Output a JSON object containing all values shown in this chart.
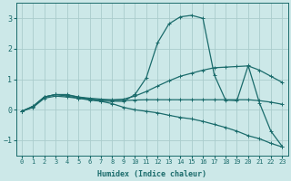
{
  "xlabel": "Humidex (Indice chaleur)",
  "ylabel": "",
  "bg_color": "#cce8e8",
  "grid_color": "#aacccc",
  "line_color": "#1a6b6b",
  "xlim": [
    -0.5,
    23.5
  ],
  "ylim": [
    -1.5,
    3.5
  ],
  "yticks": [
    -1,
    0,
    1,
    2,
    3
  ],
  "xticks": [
    0,
    1,
    2,
    3,
    4,
    5,
    6,
    7,
    8,
    9,
    10,
    11,
    12,
    13,
    14,
    15,
    16,
    17,
    18,
    19,
    20,
    21,
    22,
    23
  ],
  "series": [
    {
      "x": [
        0,
        1,
        2,
        3,
        4,
        5,
        6,
        7,
        8,
        9,
        10,
        11,
        12,
        13,
        14,
        15,
        16,
        17,
        18,
        19,
        20,
        21,
        22,
        23
      ],
      "y": [
        -0.05,
        0.12,
        0.42,
        0.5,
        0.45,
        0.38,
        0.32,
        0.28,
        0.28,
        0.28,
        0.5,
        1.05,
        2.2,
        2.82,
        3.05,
        3.1,
        3.0,
        1.15,
        0.32,
        0.3,
        1.45,
        0.22,
        -0.7,
        -1.2
      ]
    },
    {
      "x": [
        0,
        1,
        2,
        3,
        4,
        5,
        6,
        7,
        8,
        9,
        10,
        11,
        12,
        13,
        14,
        15,
        16,
        17,
        18,
        19,
        20,
        21,
        22,
        23
      ],
      "y": [
        -0.05,
        0.08,
        0.38,
        0.45,
        0.42,
        0.38,
        0.35,
        0.32,
        0.33,
        0.35,
        0.45,
        0.6,
        0.78,
        0.95,
        1.1,
        1.2,
        1.3,
        1.38,
        1.4,
        1.42,
        1.44,
        1.3,
        1.1,
        0.9
      ]
    },
    {
      "x": [
        0,
        1,
        2,
        3,
        4,
        5,
        6,
        7,
        8,
        9,
        10,
        11,
        12,
        13,
        14,
        15,
        16,
        17,
        18,
        19,
        20,
        21,
        22,
        23
      ],
      "y": [
        -0.05,
        0.1,
        0.42,
        0.5,
        0.48,
        0.42,
        0.38,
        0.35,
        0.32,
        0.3,
        0.32,
        0.33,
        0.33,
        0.33,
        0.33,
        0.33,
        0.33,
        0.33,
        0.33,
        0.33,
        0.33,
        0.3,
        0.25,
        0.18
      ]
    },
    {
      "x": [
        0,
        1,
        2,
        3,
        4,
        5,
        6,
        7,
        8,
        9,
        10,
        11,
        12,
        13,
        14,
        15,
        16,
        17,
        18,
        19,
        20,
        21,
        22,
        23
      ],
      "y": [
        -0.05,
        0.1,
        0.42,
        0.5,
        0.5,
        0.42,
        0.35,
        0.28,
        0.2,
        0.08,
        0.0,
        -0.05,
        -0.1,
        -0.18,
        -0.25,
        -0.3,
        -0.38,
        -0.48,
        -0.58,
        -0.7,
        -0.85,
        -0.95,
        -1.1,
        -1.22
      ]
    }
  ]
}
